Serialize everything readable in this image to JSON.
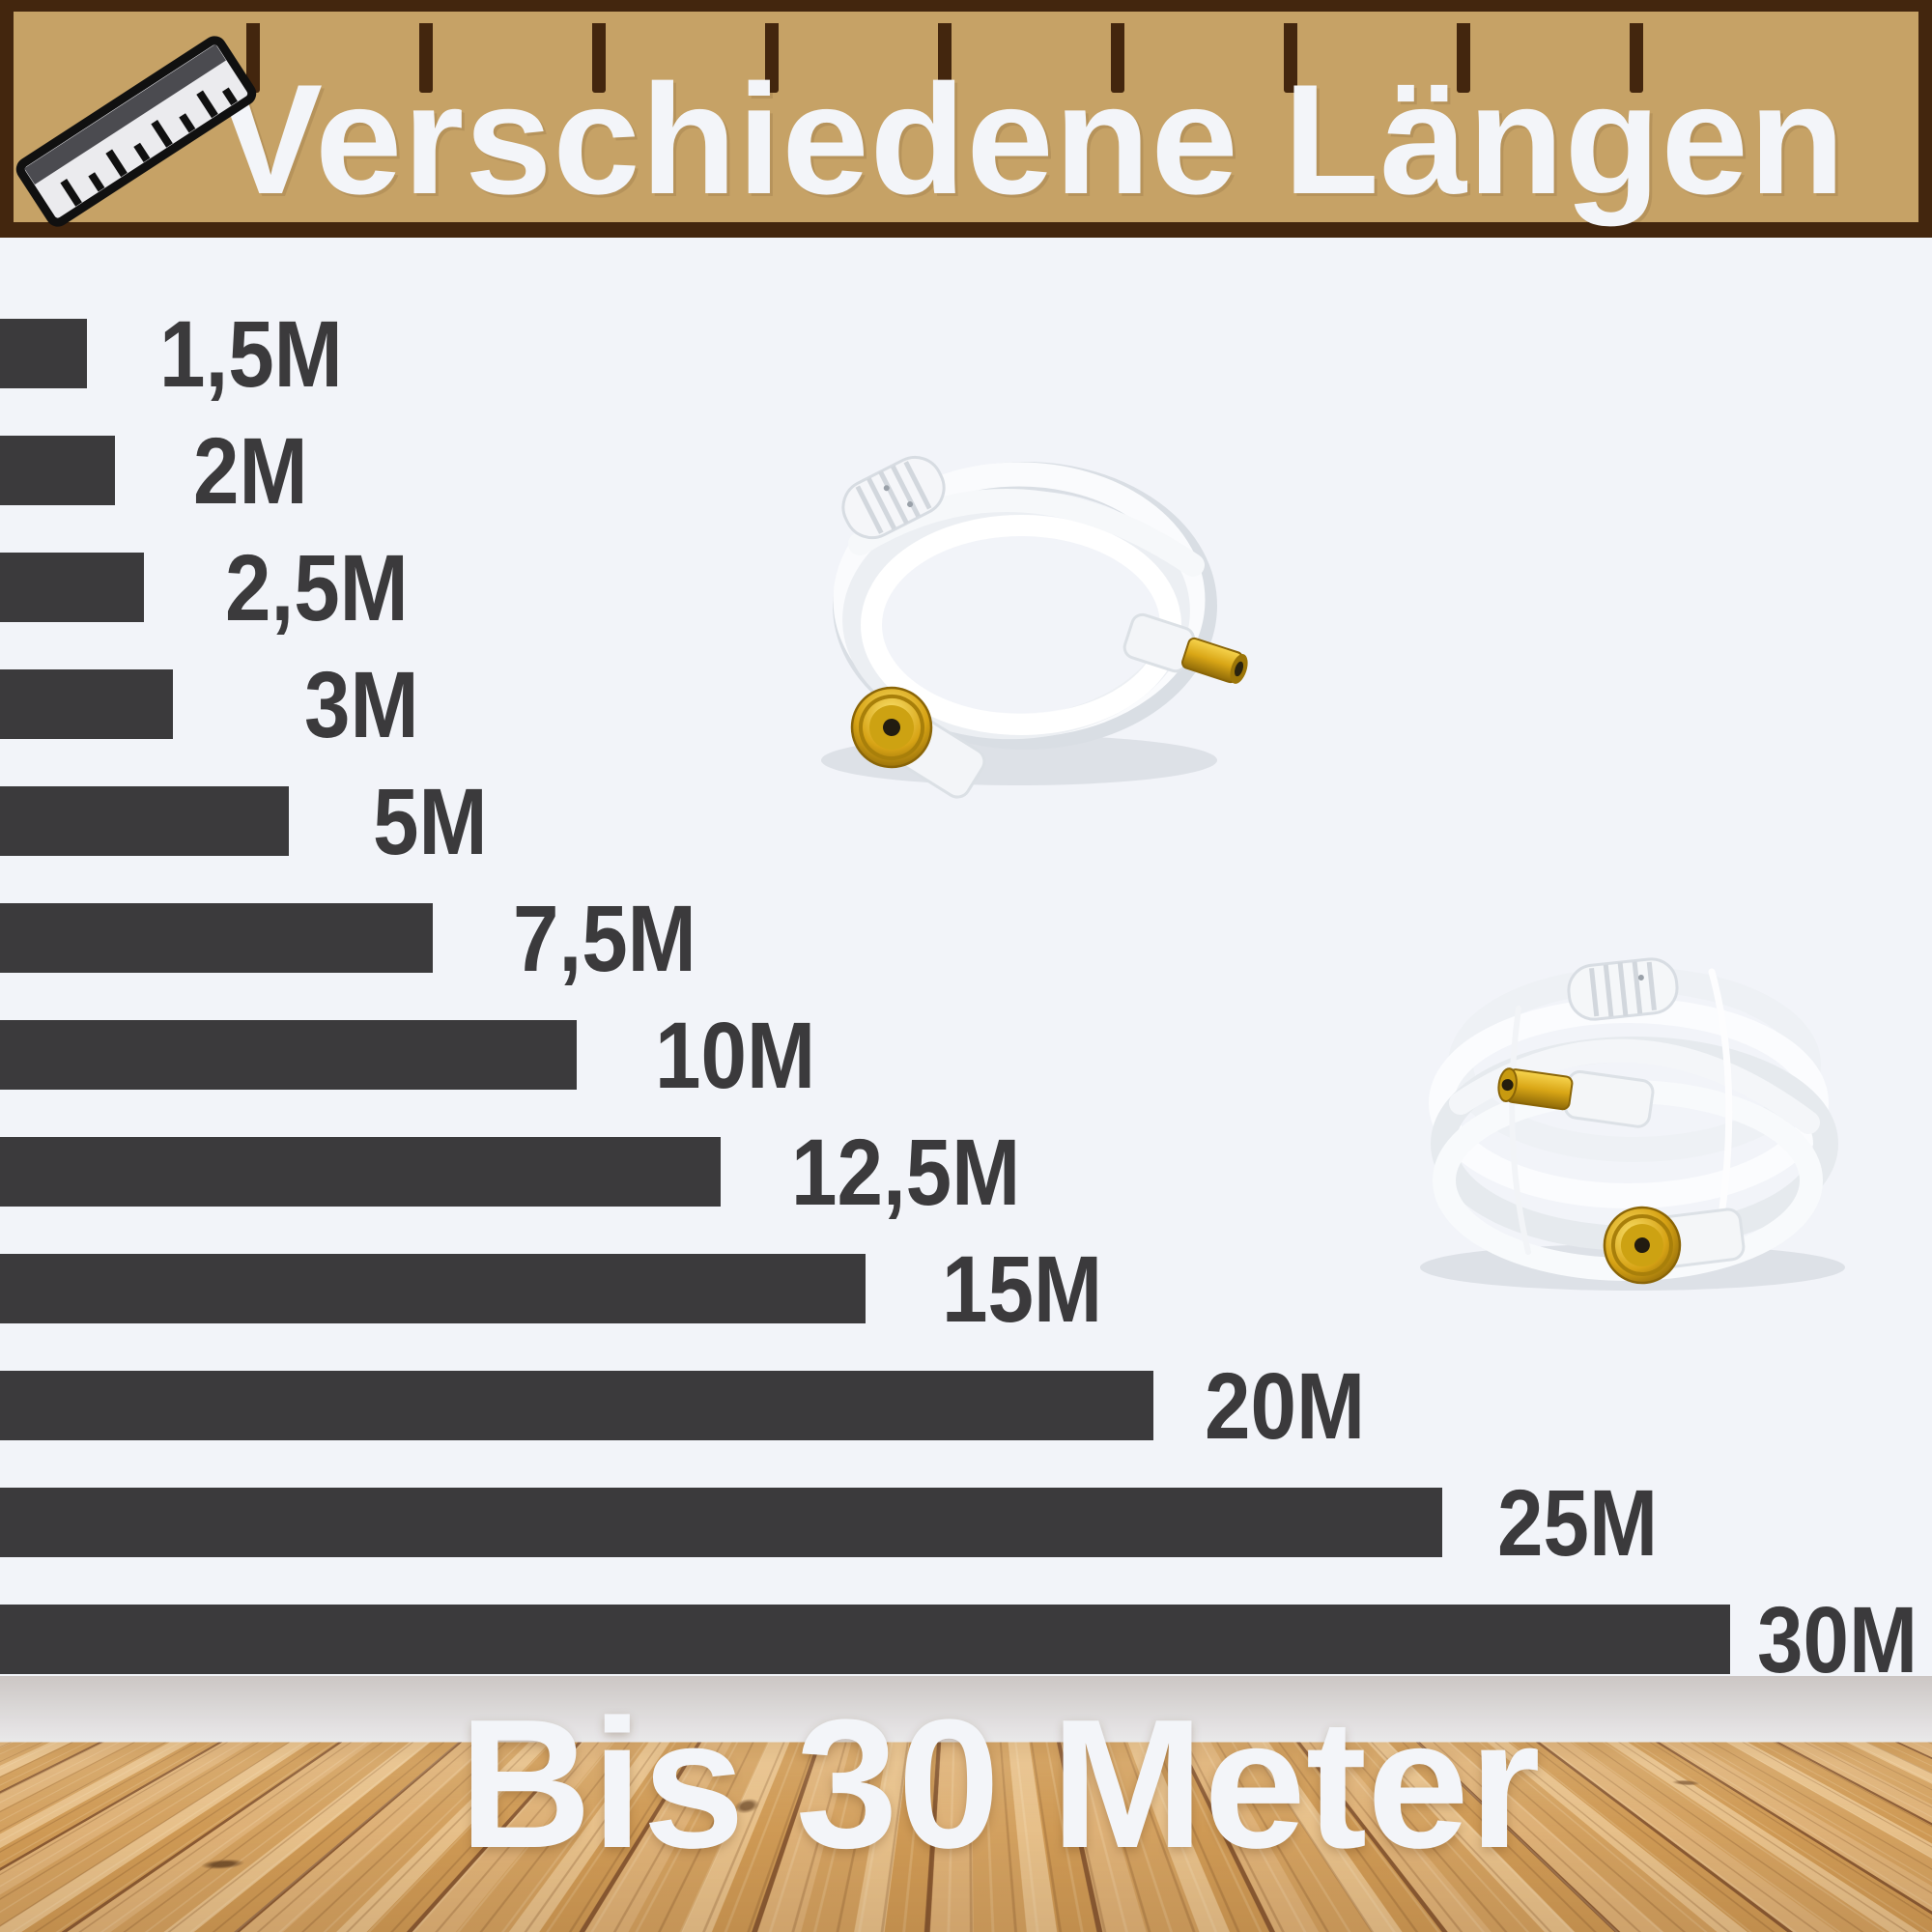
{
  "header": {
    "title": "Verschiedene Längen",
    "icon": "ruler-icon",
    "ruler_tick_count": 9,
    "colors": {
      "banner": "#c6a266",
      "border": "#43260e",
      "title": "#f3f5f9"
    }
  },
  "chart": {
    "bar_color": "#3b3a3c",
    "background": "#f2f4f9",
    "bars": [
      {
        "label": "1,5M",
        "meters": 1.5
      },
      {
        "label": "2M",
        "meters": 2
      },
      {
        "label": "2,5M",
        "meters": 2.5
      },
      {
        "label": "3M",
        "meters": 3
      },
      {
        "label": "5M",
        "meters": 5
      },
      {
        "label": "7,5M",
        "meters": 7.5
      },
      {
        "label": "10M",
        "meters": 10
      },
      {
        "label": "12,5M",
        "meters": 12.5
      },
      {
        "label": "15M",
        "meters": 15
      },
      {
        "label": "20M",
        "meters": 20
      },
      {
        "label": "25M",
        "meters": 25
      },
      {
        "label": "30M",
        "meters": 30
      }
    ]
  },
  "products": [
    {
      "name": "white coaxial antenna cable, short coil, gold-plated connectors"
    },
    {
      "name": "white coaxial antenna cable, long stacked coil, gold-plated connectors"
    }
  ],
  "footer": {
    "caption": "Bis 30 Meter",
    "color": "#f3f5f9"
  },
  "chart_data": {
    "type": "bar",
    "orientation": "horizontal",
    "title": "Verschiedene Längen",
    "categories": [
      "1,5M",
      "2M",
      "2,5M",
      "3M",
      "5M",
      "7,5M",
      "10M",
      "12,5M",
      "15M",
      "20M",
      "25M",
      "30M"
    ],
    "values": [
      1.5,
      2,
      2.5,
      3,
      5,
      7.5,
      10,
      12.5,
      15,
      20,
      25,
      30
    ],
    "unit": "meters",
    "xlabel": "",
    "ylabel": "",
    "xlim": [
      0,
      30
    ],
    "grid": false,
    "legend": "none",
    "annotation": "Bis 30 Meter",
    "bar_color": "#3b3a3c"
  }
}
